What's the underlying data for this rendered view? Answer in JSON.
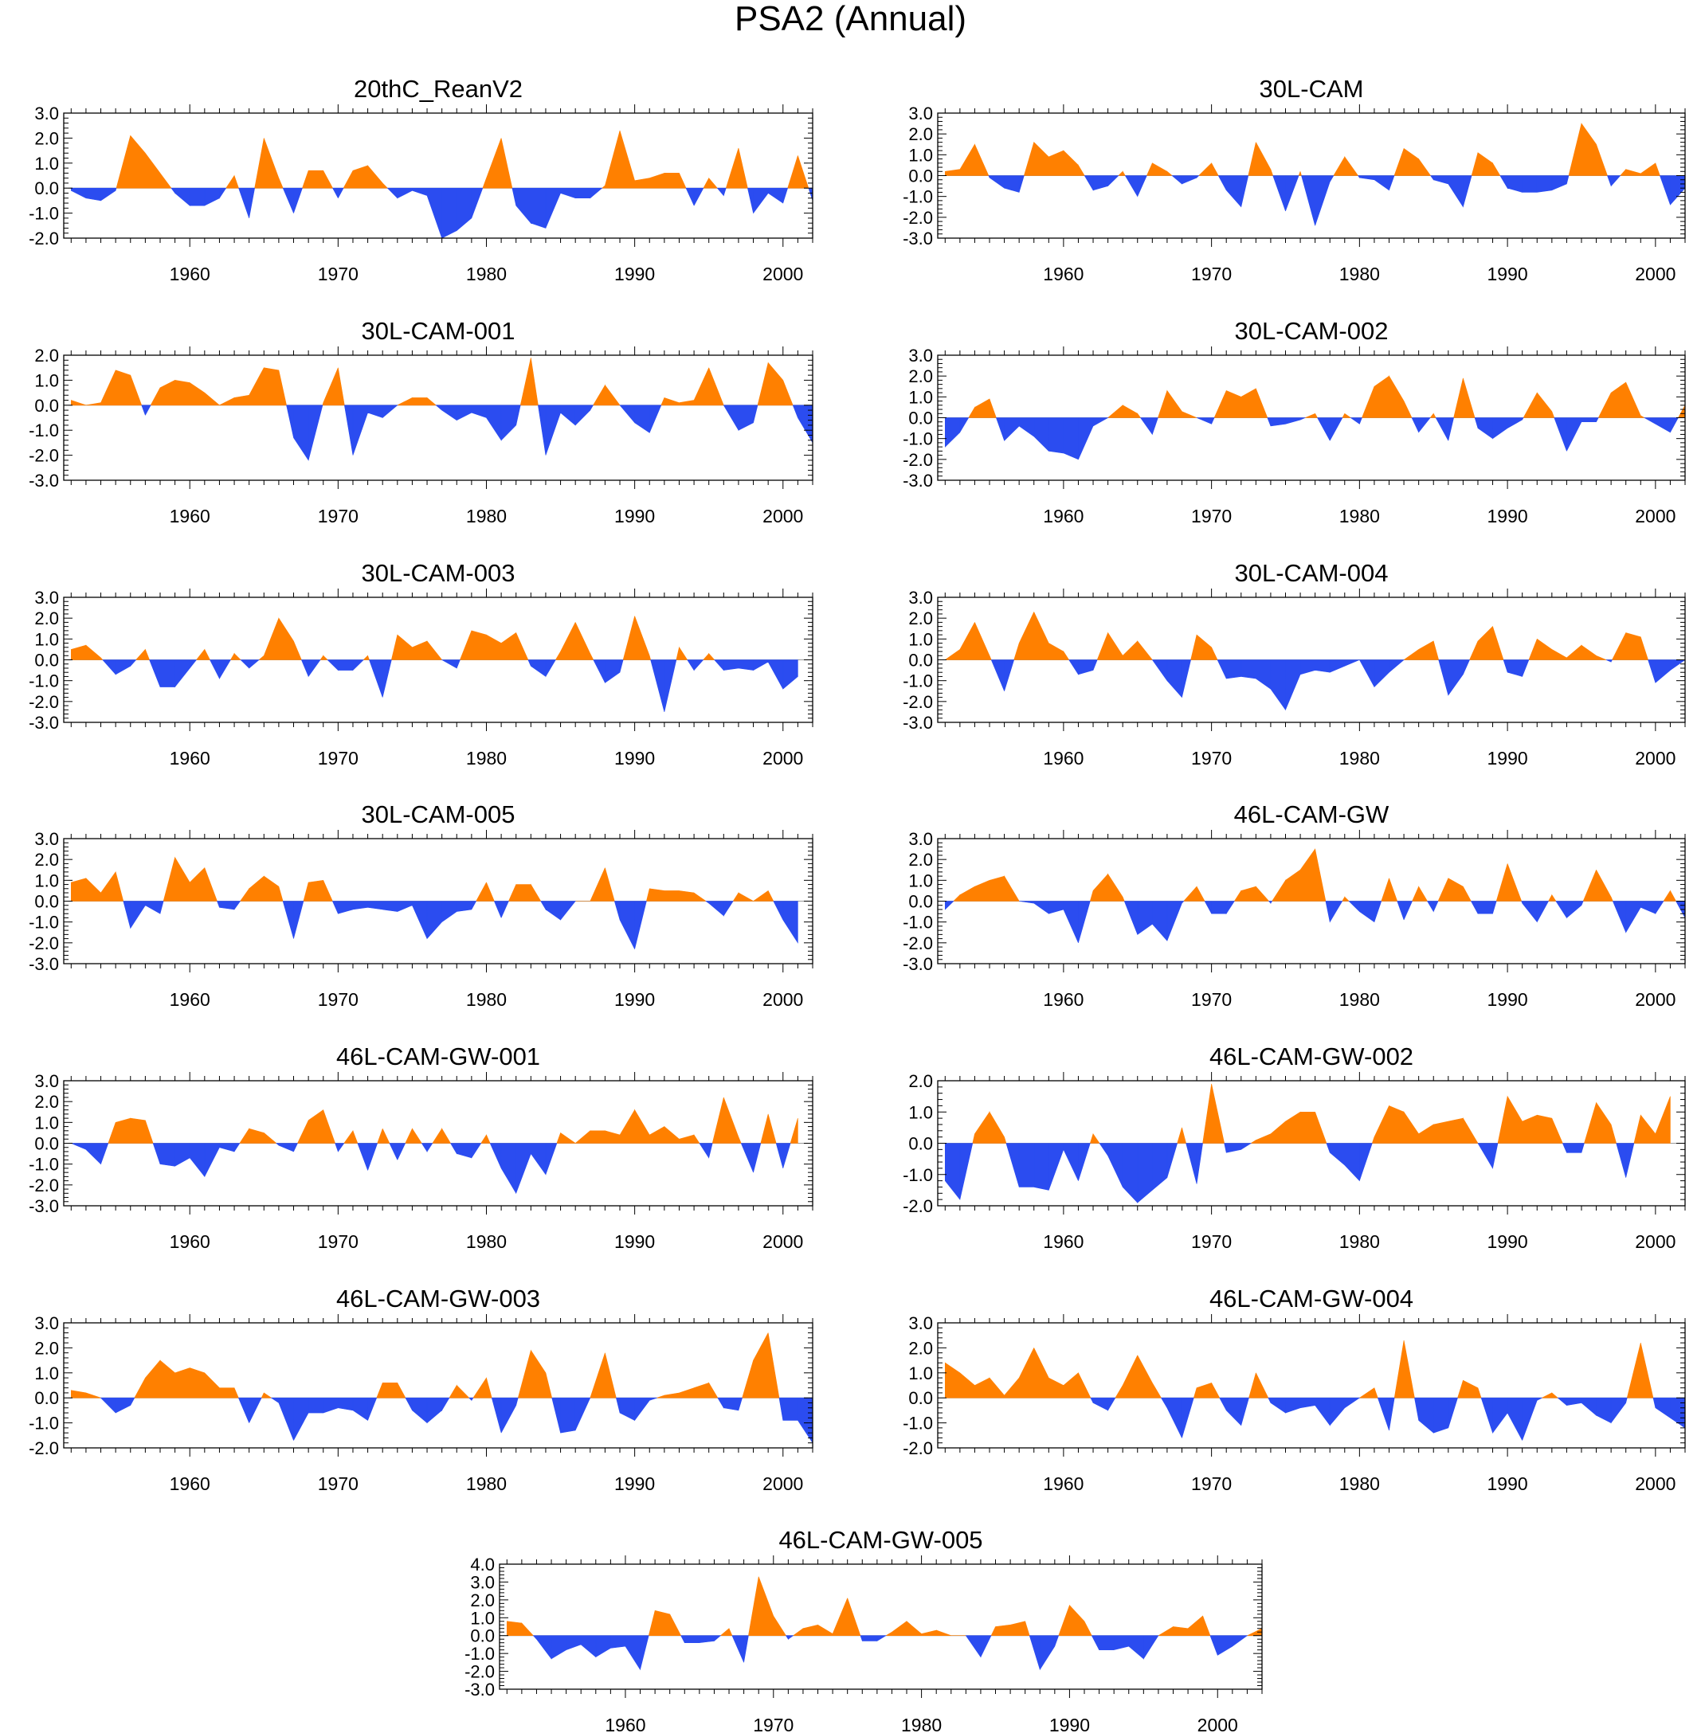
{
  "title": "PSA2 (Annual)",
  "colors": {
    "positive": "#ff8000",
    "negative": "#2b4cf0",
    "axis": "#000000",
    "zero_line": "#999999"
  },
  "chart_data": [
    {
      "type": "area",
      "title": "20thC_ReanV2",
      "ylim": [
        -2,
        3
      ],
      "yticks": [
        -2,
        -1,
        0,
        1,
        2,
        3
      ],
      "x_start": 1952,
      "xlim": [
        1951.5,
        2002
      ],
      "xticks": [
        1960,
        1970,
        1980,
        1990,
        2000
      ],
      "values": [
        -0.1,
        -0.4,
        -0.5,
        -0.1,
        2.1,
        1.4,
        0.6,
        -0.2,
        -0.7,
        -0.7,
        -0.4,
        0.5,
        -1.2,
        2.0,
        0.4,
        -1.0,
        0.7,
        0.7,
        -0.4,
        0.7,
        0.9,
        0.2,
        -0.4,
        -0.1,
        -0.3,
        -2.0,
        -1.7,
        -1.2,
        0.4,
        2.0,
        -0.7,
        -1.4,
        -1.6,
        -0.2,
        -0.4,
        -0.4,
        0.1,
        2.3,
        0.3,
        0.4,
        0.6,
        0.6,
        -0.7,
        0.4,
        -0.3,
        1.6,
        -1.0,
        -0.2,
        -0.6,
        1.3,
        -0.5
      ]
    },
    {
      "type": "area",
      "title": "30L-CAM",
      "ylim": [
        -3,
        3
      ],
      "yticks": [
        -3,
        -2,
        -1,
        0,
        1,
        2,
        3
      ],
      "x_start": 1952,
      "xlim": [
        1951.5,
        2002
      ],
      "xticks": [
        1960,
        1970,
        1980,
        1990,
        2000
      ],
      "values": [
        0.2,
        0.3,
        1.5,
        -0.1,
        -0.6,
        -0.8,
        1.6,
        0.9,
        1.2,
        0.5,
        -0.7,
        -0.5,
        0.2,
        -1.0,
        0.6,
        0.2,
        -0.4,
        -0.1,
        0.6,
        -0.7,
        -1.5,
        1.6,
        0.3,
        -1.7,
        0.2,
        -2.4,
        -0.3,
        0.9,
        -0.1,
        -0.2,
        -0.7,
        1.3,
        0.8,
        -0.2,
        -0.4,
        -1.5,
        1.1,
        0.6,
        -0.6,
        -0.8,
        -0.8,
        -0.7,
        -0.4,
        2.5,
        1.5,
        -0.5,
        0.3,
        0.1,
        0.6,
        -1.4,
        -0.6
      ]
    },
    {
      "type": "area",
      "title": "30L-CAM-001",
      "ylim": [
        -3,
        2
      ],
      "yticks": [
        -3,
        -2,
        -1,
        0,
        1,
        2
      ],
      "x_start": 1952,
      "xlim": [
        1951.5,
        2002
      ],
      "xticks": [
        1960,
        1970,
        1980,
        1990,
        2000
      ],
      "values": [
        0.2,
        0.0,
        0.1,
        1.4,
        1.2,
        -0.4,
        0.7,
        1.0,
        0.9,
        0.5,
        0.0,
        0.3,
        0.4,
        1.5,
        1.4,
        -1.3,
        -2.2,
        0.1,
        1.5,
        -2.0,
        -0.3,
        -0.5,
        0.0,
        0.3,
        0.3,
        -0.2,
        -0.6,
        -0.3,
        -0.5,
        -1.4,
        -0.8,
        1.9,
        -2.0,
        -0.3,
        -0.8,
        -0.2,
        0.8,
        0.0,
        -0.7,
        -1.1,
        0.3,
        0.1,
        0.2,
        1.5,
        0.0,
        -1.0,
        -0.7,
        1.7,
        1.0,
        -0.5,
        -1.5
      ]
    },
    {
      "type": "area",
      "title": "30L-CAM-002",
      "ylim": [
        -3,
        3
      ],
      "yticks": [
        -3,
        -2,
        -1,
        0,
        1,
        2,
        3
      ],
      "x_start": 1952,
      "xlim": [
        1951.5,
        2002
      ],
      "xticks": [
        1960,
        1970,
        1980,
        1990,
        2000
      ],
      "values": [
        -1.4,
        -0.7,
        0.5,
        0.9,
        -1.1,
        -0.4,
        -0.9,
        -1.6,
        -1.7,
        -2.0,
        -0.4,
        0.0,
        0.6,
        0.2,
        -0.8,
        1.3,
        0.3,
        0.0,
        -0.3,
        1.3,
        1.0,
        1.4,
        -0.4,
        -0.3,
        -0.1,
        0.2,
        -1.1,
        0.2,
        -0.3,
        1.5,
        2.0,
        0.8,
        -0.7,
        0.2,
        -1.1,
        1.9,
        -0.5,
        -1.0,
        -0.5,
        -0.1,
        1.2,
        0.3,
        -1.6,
        -0.2,
        -0.2,
        1.2,
        1.7,
        0.1,
        -0.3,
        -0.7,
        0.6
      ]
    },
    {
      "type": "area",
      "title": "30L-CAM-003",
      "ylim": [
        -3,
        3
      ],
      "yticks": [
        -3,
        -2,
        -1,
        0,
        1,
        2,
        3
      ],
      "x_start": 1952,
      "xlim": [
        1951.5,
        2002
      ],
      "xticks": [
        1960,
        1970,
        1980,
        1990,
        2000
      ],
      "values": [
        0.5,
        0.7,
        0.1,
        -0.7,
        -0.3,
        0.5,
        -1.3,
        -1.3,
        -0.4,
        0.5,
        -0.9,
        0.3,
        -0.4,
        0.2,
        2.0,
        0.9,
        -0.8,
        0.2,
        -0.5,
        -0.5,
        0.2,
        -1.8,
        1.2,
        0.6,
        0.9,
        0.0,
        -0.4,
        1.4,
        1.2,
        0.8,
        1.3,
        -0.3,
        -0.8,
        0.4,
        1.8,
        0.3,
        -1.1,
        -0.6,
        2.1,
        0.2,
        -2.5,
        0.6,
        -0.5,
        0.3,
        -0.5,
        -0.4,
        -0.5,
        -0.1,
        -1.4,
        -0.8
      ]
    },
    {
      "type": "area",
      "title": "30L-CAM-004",
      "ylim": [
        -3,
        3
      ],
      "yticks": [
        -3,
        -2,
        -1,
        0,
        1,
        2,
        3
      ],
      "x_start": 1952,
      "xlim": [
        1951.5,
        2002
      ],
      "xticks": [
        1960,
        1970,
        1980,
        1990,
        2000
      ],
      "values": [
        0.0,
        0.5,
        1.8,
        0.2,
        -1.5,
        0.8,
        2.3,
        0.8,
        0.4,
        -0.7,
        -0.5,
        1.3,
        0.2,
        0.9,
        0.0,
        -1.0,
        -1.8,
        1.2,
        0.6,
        -0.9,
        -0.8,
        -0.9,
        -1.4,
        -2.4,
        -0.7,
        -0.5,
        -0.6,
        -0.3,
        0.0,
        -1.3,
        -0.6,
        0.0,
        0.5,
        0.9,
        -1.7,
        -0.7,
        0.9,
        1.6,
        -0.6,
        -0.8,
        1.0,
        0.5,
        0.1,
        0.7,
        0.2,
        -0.1,
        1.3,
        1.1,
        -1.1,
        -0.5,
        0.0
      ]
    },
    {
      "type": "area",
      "title": "30L-CAM-005",
      "ylim": [
        -3,
        3
      ],
      "yticks": [
        -3,
        -2,
        -1,
        0,
        1,
        2,
        3
      ],
      "x_start": 1952,
      "xlim": [
        1951.5,
        2002
      ],
      "xticks": [
        1960,
        1970,
        1980,
        1990,
        2000
      ],
      "values": [
        0.9,
        1.1,
        0.4,
        1.4,
        -1.3,
        -0.2,
        -0.6,
        2.1,
        0.9,
        1.6,
        -0.3,
        -0.4,
        0.6,
        1.2,
        0.7,
        -1.8,
        0.9,
        1.0,
        -0.6,
        -0.4,
        -0.3,
        -0.4,
        -0.5,
        -0.2,
        -1.8,
        -1.0,
        -0.5,
        -0.4,
        0.9,
        -0.8,
        0.8,
        0.8,
        -0.4,
        -0.9,
        0.0,
        0.0,
        1.6,
        -0.9,
        -2.3,
        0.6,
        0.5,
        0.5,
        0.4,
        -0.1,
        -0.7,
        0.4,
        0.0,
        0.5,
        -0.9,
        -2.0
      ]
    },
    {
      "type": "area",
      "title": "46L-CAM-GW",
      "ylim": [
        -3,
        3
      ],
      "yticks": [
        -3,
        -2,
        -1,
        0,
        1,
        2,
        3
      ],
      "x_start": 1952,
      "xlim": [
        1951.5,
        2002
      ],
      "xticks": [
        1960,
        1970,
        1980,
        1990,
        2000
      ],
      "values": [
        -0.4,
        0.3,
        0.7,
        1.0,
        1.2,
        0.0,
        -0.1,
        -0.6,
        -0.4,
        -2.0,
        0.5,
        1.3,
        0.2,
        -1.6,
        -1.1,
        -1.9,
        -0.1,
        0.7,
        -0.6,
        -0.6,
        0.5,
        0.7,
        -0.1,
        1.0,
        1.5,
        2.5,
        -1.0,
        0.2,
        -0.5,
        -1.0,
        1.1,
        -0.9,
        0.7,
        -0.5,
        1.1,
        0.7,
        -0.6,
        -0.6,
        1.8,
        -0.1,
        -1.0,
        0.3,
        -0.8,
        -0.2,
        1.5,
        0.2,
        -1.5,
        -0.3,
        -0.6,
        0.5,
        -0.8
      ]
    },
    {
      "type": "area",
      "title": "46L-CAM-GW-001",
      "ylim": [
        -3,
        3
      ],
      "yticks": [
        -3,
        -2,
        -1,
        0,
        1,
        2,
        3
      ],
      "x_start": 1952,
      "xlim": [
        1951.5,
        2002
      ],
      "xticks": [
        1960,
        1970,
        1980,
        1990,
        2000
      ],
      "values": [
        0.0,
        -0.3,
        -1.0,
        1.0,
        1.2,
        1.1,
        -1.0,
        -1.1,
        -0.7,
        -1.6,
        -0.2,
        -0.4,
        0.7,
        0.5,
        -0.1,
        -0.4,
        1.1,
        1.6,
        -0.4,
        0.6,
        -1.3,
        0.7,
        -0.8,
        0.7,
        -0.4,
        0.7,
        -0.5,
        -0.7,
        0.4,
        -1.2,
        -2.4,
        -0.5,
        -1.5,
        0.5,
        0.0,
        0.6,
        0.6,
        0.4,
        1.6,
        0.4,
        0.8,
        0.2,
        0.4,
        -0.7,
        2.2,
        0.3,
        -1.4,
        1.4,
        -1.2,
        1.2
      ]
    },
    {
      "type": "area",
      "title": "46L-CAM-GW-002",
      "ylim": [
        -2,
        2
      ],
      "yticks": [
        -2,
        -1,
        0,
        1,
        2
      ],
      "x_start": 1952,
      "xlim": [
        1951.5,
        2002
      ],
      "xticks": [
        1960,
        1970,
        1980,
        1990,
        2000
      ],
      "values": [
        -1.2,
        -1.8,
        0.3,
        1.0,
        0.2,
        -1.4,
        -1.4,
        -1.5,
        -0.2,
        -1.2,
        0.3,
        -0.4,
        -1.4,
        -1.9,
        -1.5,
        -1.1,
        0.5,
        -1.3,
        1.9,
        -0.3,
        -0.2,
        0.1,
        0.3,
        0.7,
        1.0,
        1.0,
        -0.3,
        -0.7,
        -1.2,
        0.2,
        1.2,
        1.0,
        0.3,
        0.6,
        0.7,
        0.8,
        0.0,
        -0.8,
        1.5,
        0.7,
        0.9,
        0.8,
        -0.3,
        -0.3,
        1.3,
        0.6,
        -1.1,
        0.9,
        0.3,
        1.5
      ]
    },
    {
      "type": "area",
      "title": "46L-CAM-GW-003",
      "ylim": [
        -2,
        3
      ],
      "yticks": [
        -2,
        -1,
        0,
        1,
        2,
        3
      ],
      "x_start": 1952,
      "xlim": [
        1951.5,
        2002
      ],
      "xticks": [
        1960,
        1970,
        1980,
        1990,
        2000
      ],
      "values": [
        0.3,
        0.2,
        0.0,
        -0.6,
        -0.3,
        0.8,
        1.5,
        1.0,
        1.2,
        1.0,
        0.4,
        0.4,
        -1.0,
        0.2,
        -0.2,
        -1.7,
        -0.6,
        -0.6,
        -0.4,
        -0.5,
        -0.9,
        0.6,
        0.6,
        -0.5,
        -1.0,
        -0.5,
        0.5,
        -0.1,
        0.8,
        -1.4,
        -0.3,
        1.9,
        1.0,
        -1.4,
        -1.3,
        0.0,
        1.8,
        -0.6,
        -0.9,
        -0.1,
        0.1,
        0.2,
        0.4,
        0.6,
        -0.4,
        -0.5,
        1.5,
        2.6,
        -0.9,
        -0.9,
        -1.8
      ]
    },
    {
      "type": "area",
      "title": "46L-CAM-GW-004",
      "ylim": [
        -2,
        3
      ],
      "yticks": [
        -2,
        -1,
        0,
        1,
        2,
        3
      ],
      "x_start": 1952,
      "xlim": [
        1951.5,
        2002
      ],
      "xticks": [
        1960,
        1970,
        1980,
        1990,
        2000
      ],
      "values": [
        1.4,
        1.0,
        0.5,
        0.8,
        0.1,
        0.8,
        2.0,
        0.8,
        0.5,
        1.0,
        -0.2,
        -0.5,
        0.5,
        1.7,
        0.6,
        -0.4,
        -1.6,
        0.4,
        0.6,
        -0.5,
        -1.1,
        1.0,
        -0.2,
        -0.6,
        -0.4,
        -0.3,
        -1.1,
        -0.4,
        0.0,
        0.4,
        -1.3,
        2.3,
        -0.9,
        -1.4,
        -1.2,
        0.7,
        0.4,
        -1.4,
        -0.6,
        -1.7,
        -0.1,
        0.2,
        -0.3,
        -0.2,
        -0.7,
        -1.0,
        -0.2,
        2.2,
        -0.4,
        -0.8,
        -1.2
      ]
    },
    {
      "type": "area",
      "title": "46L-CAM-GW-005",
      "ylim": [
        -3,
        4
      ],
      "yticks": [
        -3,
        -2,
        -1,
        0,
        1,
        2,
        3,
        4
      ],
      "x_start": 1952,
      "xlim": [
        1951.5,
        2003
      ],
      "xticks": [
        1960,
        1970,
        1980,
        1990,
        2000
      ],
      "values": [
        0.8,
        0.7,
        -0.2,
        -1.3,
        -0.8,
        -0.5,
        -1.2,
        -0.7,
        -0.6,
        -1.9,
        1.4,
        1.2,
        -0.4,
        -0.4,
        -0.3,
        0.4,
        -1.5,
        3.3,
        1.1,
        -0.2,
        0.4,
        0.6,
        0.1,
        2.1,
        -0.3,
        -0.3,
        0.2,
        0.8,
        0.1,
        0.3,
        0.0,
        0.0,
        -1.2,
        0.5,
        0.6,
        0.8,
        -1.9,
        -0.6,
        1.7,
        0.8,
        -0.8,
        -0.8,
        -0.6,
        -1.3,
        0.0,
        0.5,
        0.4,
        1.1,
        -1.1,
        -0.6,
        0.0,
        0.4
      ]
    }
  ]
}
